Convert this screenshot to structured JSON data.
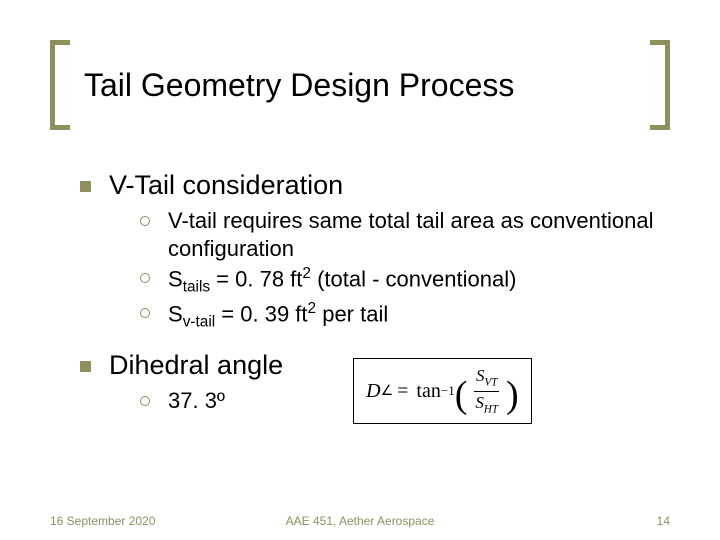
{
  "colors": {
    "accent": "#8f8f60",
    "text": "#000000",
    "background": "#ffffff"
  },
  "title": "Tail Geometry Design Process",
  "section1": {
    "heading": "V-Tail consideration",
    "items": [
      "V-tail requires same total tail area as conventional configuration",
      "S<sub>tails</sub> = 0. 78 ft<sup>2</sup>  (total - conventional)",
      "S<sub>v-tail</sub> = 0. 39 ft<sup>2</sup> per tail"
    ]
  },
  "section2": {
    "heading": "Dihedral angle",
    "items": [
      "37. 3º"
    ]
  },
  "formula": {
    "lhs_var": "D",
    "lhs_sub": "∠",
    "func": "tan",
    "exp": "−1",
    "num_var": "S",
    "num_sub": "VT",
    "den_var": "S",
    "den_sub": "HT"
  },
  "footer": {
    "date": "16 September 2020",
    "center": "AAE 451, Aether Aerospace",
    "page": "14"
  },
  "typography": {
    "title_fontsize": 32,
    "level1_fontsize": 27,
    "level2_fontsize": 22,
    "footer_fontsize": 12
  }
}
